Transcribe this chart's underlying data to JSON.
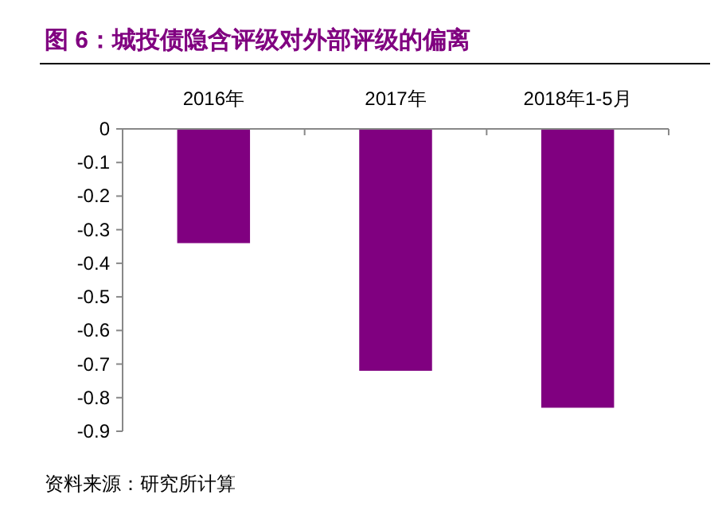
{
  "chart_data": {
    "type": "bar",
    "title": "图 6：城投债隐含评级对外部评级的偏离",
    "categories": [
      "2016年",
      "2017年",
      "2018年1-5月"
    ],
    "values": [
      -0.34,
      -0.72,
      -0.83
    ],
    "color": "#800080",
    "ylim": [
      -0.9,
      0
    ],
    "yticks": [
      0,
      -0.1,
      -0.2,
      -0.3,
      -0.4,
      -0.5,
      -0.6,
      -0.7,
      -0.8,
      -0.9
    ],
    "grid": false,
    "annotations": [
      "资料来源：研究所计算"
    ]
  }
}
